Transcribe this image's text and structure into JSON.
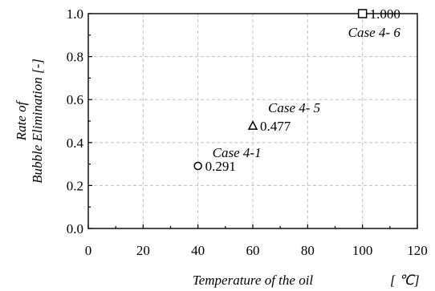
{
  "chart_data": {
    "type": "scatter",
    "xlabel": "Temperature of the oil",
    "xunit": "[ ℃]",
    "ylabel_lines": [
      "Rate of",
      "Bubble Elimination [-]"
    ],
    "xlim": [
      0,
      120
    ],
    "ylim": [
      0.0,
      1.0
    ],
    "x_ticks": [
      "0",
      "20",
      "40",
      "60",
      "80",
      "100",
      "120"
    ],
    "y_ticks": [
      "0.0",
      "0.2",
      "0.4",
      "0.6",
      "0.8",
      "1.0"
    ],
    "grid": true,
    "points": [
      {
        "x": 40,
        "y": 0.291,
        "marker": "circle",
        "value_label": "0.291",
        "case_label": "Case 4-1"
      },
      {
        "x": 60,
        "y": 0.477,
        "marker": "triangle",
        "value_label": "0.477",
        "case_label": "Case 4- 5"
      },
      {
        "x": 100,
        "y": 1.0,
        "marker": "square",
        "value_label": "1.000",
        "case_label": "Case 4- 6"
      }
    ]
  }
}
